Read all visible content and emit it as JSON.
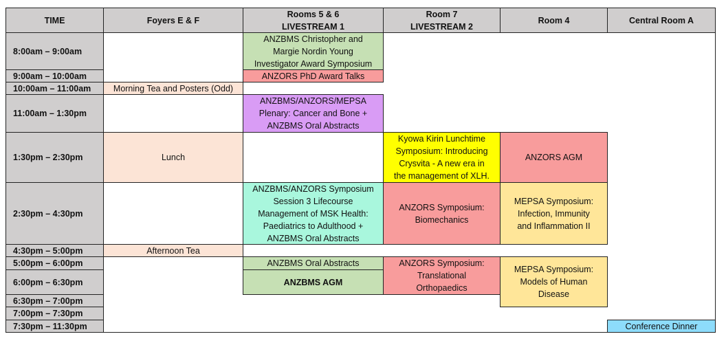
{
  "headers": [
    "TIME",
    "Foyers E & F",
    "Rooms 5 & 6\nLIVESTREAM 1",
    "Room 7\nLIVESTREAM 2",
    "Room 4",
    "Central Room A"
  ],
  "times": [
    "8:00am – 9:00am",
    "9:00am – 10:00am",
    "10:00am – 11:00am",
    "11:00am – 1:30pm",
    "1:30pm – 2:30pm",
    "2:30pm – 4:30pm",
    "4:30pm – 5:00pm",
    "5:00pm – 6:00pm",
    "6:00pm – 6:30pm",
    "6:30pm – 7:00pm",
    "7:00pm – 7:30pm",
    "7:30pm – 11:30pm"
  ],
  "foyers": {
    "morning_tea": "Morning Tea and Posters (Odd)",
    "lunch": "Lunch",
    "afternoon_tea": "Afternoon Tea"
  },
  "rooms56": {
    "young_investigator": "ANZBMS Christopher and\nMargie Nordin Young\nInvestigator Award Symposium",
    "phd_award": "ANZORS PhD Award Talks",
    "plenary": "ANZBMS/ANZORS/MEPSA\nPlenary: Cancer and Bone +\nANZBMS Oral Abstracts",
    "symposium3": "ANZBMS/ANZORS Symposium\nSession 3 Lifecourse\nManagement of MSK Health:\nPaediatrics to Adulthood +\nANZBMS Oral Abstracts",
    "oral_abstracts": "ANZBMS Oral Abstracts",
    "agm": "ANZBMS AGM"
  },
  "room7": {
    "kyowa": "Kyowa Kirin Lunchtime\nSymposium: Introducing\nCrysvita - A new era in\nthe management of XLH.",
    "biomechanics": "ANZORS Symposium:\nBiomechanics",
    "translational": "ANZORS Symposium:\nTranslational\nOrthopaedics"
  },
  "room4": {
    "anzors_agm": "ANZORS AGM",
    "infection": "MEPSA Symposium:\nInfection, Immunity\nand Inflammation II",
    "models": "MEPSA Symposium:\nModels of Human\nDisease"
  },
  "central": {
    "dinner": "Conference Dinner"
  },
  "colors": {
    "header": "#d0cece",
    "anzbms": "#c6e0b4",
    "anzors": "#f89c9c",
    "plenary": "#d99cf5",
    "catering": "#fce4d6",
    "joint": "#a9f7dd",
    "sponsor": "#ffff00",
    "mepsa": "#ffe699",
    "dinner": "#8ddcfb"
  }
}
